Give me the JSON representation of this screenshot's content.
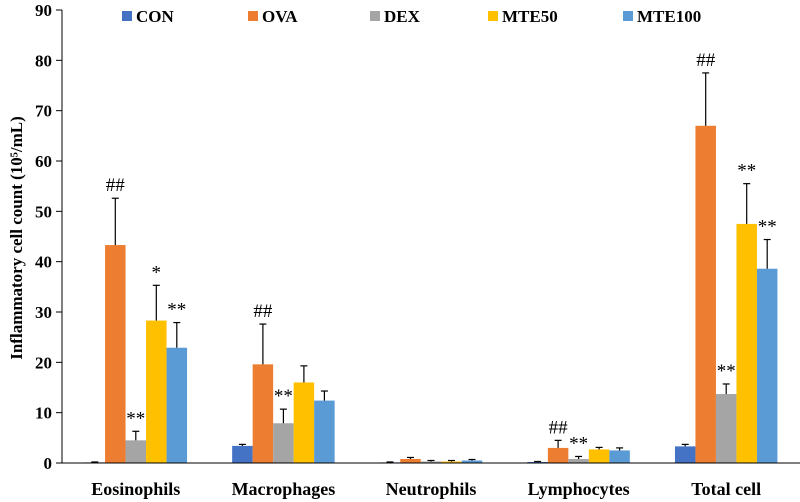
{
  "chart_data": {
    "type": "bar",
    "title": "",
    "xlabel": "",
    "ylabel": "Inflammatory cell count (10⁵/mL)",
    "ylim": [
      0,
      90
    ],
    "yticks": [
      "0",
      "10",
      "20",
      "30",
      "40",
      "50",
      "60",
      "70",
      "80",
      "90"
    ],
    "legend_position": "top",
    "grid": false,
    "categories": [
      "Eosinophils",
      "Macrophages",
      "Neutrophils",
      "Lymphocytes",
      "Total cell"
    ],
    "series": [
      {
        "name": "CON",
        "color": "#4472C4",
        "values": [
          0.1,
          3.4,
          0.1,
          0.2,
          3.3
        ],
        "errors": [
          0.1,
          0.3,
          0.1,
          0.1,
          0.4
        ],
        "annotations": [
          "",
          "",
          "",
          "",
          ""
        ]
      },
      {
        "name": "OVA",
        "color": "#ED7D31",
        "values": [
          43.3,
          19.6,
          0.8,
          3.0,
          67.0
        ],
        "errors": [
          9.3,
          8.0,
          0.3,
          1.5,
          10.5
        ],
        "annotations": [
          "##",
          "##",
          "",
          "##",
          "##"
        ]
      },
      {
        "name": "DEX",
        "color": "#A5A5A5",
        "values": [
          4.5,
          7.9,
          0.3,
          0.8,
          13.7
        ],
        "errors": [
          1.8,
          2.8,
          0.2,
          0.5,
          2.0
        ],
        "annotations": [
          "**",
          "**",
          "",
          "**",
          "**"
        ]
      },
      {
        "name": "MTE50",
        "color": "#FFC000",
        "values": [
          28.3,
          16.0,
          0.3,
          2.7,
          47.5
        ],
        "errors": [
          7.0,
          3.3,
          0.2,
          0.4,
          8.0
        ],
        "annotations": [
          "*",
          "",
          "",
          "",
          "**"
        ]
      },
      {
        "name": "MTE100",
        "color": "#5B9BD5",
        "values": [
          22.9,
          12.4,
          0.5,
          2.5,
          38.6
        ],
        "errors": [
          5.0,
          1.9,
          0.2,
          0.5,
          5.8
        ],
        "annotations": [
          "**",
          "",
          "",
          "",
          "**"
        ]
      }
    ]
  }
}
